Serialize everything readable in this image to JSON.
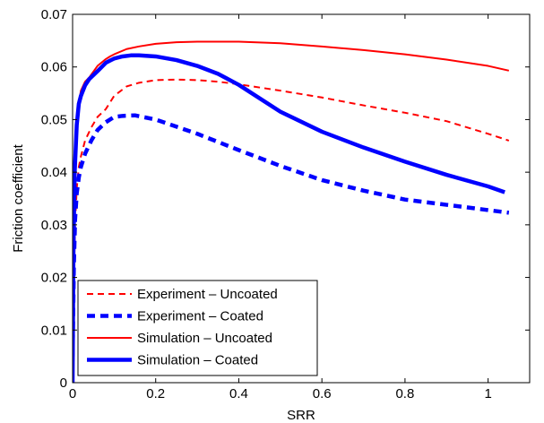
{
  "chart_data": {
    "type": "line",
    "title": "",
    "xlabel": "SRR",
    "ylabel": "Friction coefficient",
    "xlim": [
      0,
      1.1
    ],
    "ylim": [
      0,
      0.07
    ],
    "xticks": [
      0,
      0.2,
      0.4,
      0.6,
      0.8,
      1
    ],
    "xtick_labels": [
      "0",
      "0.2",
      "0.4",
      "0.6",
      "0.8",
      "1"
    ],
    "yticks": [
      0,
      0.01,
      0.02,
      0.03,
      0.04,
      0.05,
      0.06,
      0.07
    ],
    "ytick_labels": [
      "0",
      "0.01",
      "0.02",
      "0.03",
      "0.04",
      "0.05",
      "0.06",
      "0.07"
    ],
    "grid": false,
    "legend_position": "bottom-left",
    "series": [
      {
        "name": "Experiment – Uncoated",
        "color": "#ff0000",
        "style": "dashed",
        "width": "thin",
        "x": [
          0.0,
          0.003,
          0.006,
          0.01,
          0.015,
          0.02,
          0.03,
          0.045,
          0.06,
          0.08,
          0.1,
          0.13,
          0.16,
          0.2,
          0.25,
          0.3,
          0.35,
          0.4,
          0.5,
          0.6,
          0.7,
          0.8,
          0.9,
          1.0,
          1.05
        ],
        "y": [
          0.002,
          0.02,
          0.03,
          0.037,
          0.041,
          0.043,
          0.046,
          0.0485,
          0.0505,
          0.052,
          0.0545,
          0.0563,
          0.057,
          0.0575,
          0.0576,
          0.0575,
          0.0572,
          0.0567,
          0.0555,
          0.0542,
          0.0527,
          0.0513,
          0.0497,
          0.0473,
          0.046
        ]
      },
      {
        "name": "Experiment – Coated",
        "color": "#0000ff",
        "style": "dashed",
        "width": "thick",
        "x": [
          0.0,
          0.003,
          0.006,
          0.01,
          0.015,
          0.02,
          0.03,
          0.045,
          0.06,
          0.08,
          0.1,
          0.12,
          0.15,
          0.2,
          0.3,
          0.4,
          0.5,
          0.6,
          0.7,
          0.8,
          0.9,
          1.0,
          1.05
        ],
        "y": [
          0.005,
          0.022,
          0.031,
          0.036,
          0.039,
          0.041,
          0.0435,
          0.046,
          0.048,
          0.0495,
          0.0505,
          0.0507,
          0.0508,
          0.05,
          0.0473,
          0.0442,
          0.0412,
          0.0385,
          0.0365,
          0.0348,
          0.0338,
          0.0328,
          0.0323
        ]
      },
      {
        "name": "Simulation – Uncoated",
        "color": "#ff0000",
        "style": "solid",
        "width": "thin",
        "x": [
          0.0,
          0.002,
          0.005,
          0.01,
          0.015,
          0.02,
          0.03,
          0.04,
          0.06,
          0.08,
          0.09,
          0.1,
          0.13,
          0.16,
          0.2,
          0.25,
          0.3,
          0.35,
          0.4,
          0.5,
          0.6,
          0.7,
          0.8,
          0.9,
          1.0,
          1.05
        ],
        "y": [
          0.0,
          0.025,
          0.04,
          0.049,
          0.053,
          0.0555,
          0.0572,
          0.058,
          0.0602,
          0.0615,
          0.062,
          0.0624,
          0.0634,
          0.0639,
          0.0644,
          0.0647,
          0.0648,
          0.0648,
          0.0648,
          0.0645,
          0.0639,
          0.0632,
          0.0624,
          0.0614,
          0.0602,
          0.0593
        ]
      },
      {
        "name": "Simulation – Coated",
        "color": "#0000ff",
        "style": "solid",
        "width": "thick",
        "x": [
          0.0,
          0.002,
          0.005,
          0.01,
          0.015,
          0.02,
          0.03,
          0.04,
          0.06,
          0.08,
          0.09,
          0.1,
          0.12,
          0.14,
          0.16,
          0.2,
          0.25,
          0.3,
          0.35,
          0.4,
          0.5,
          0.6,
          0.7,
          0.8,
          0.9,
          1.0,
          1.04
        ],
        "y": [
          0.0,
          0.025,
          0.04,
          0.049,
          0.053,
          0.0545,
          0.0565,
          0.0577,
          0.0592,
          0.0608,
          0.0612,
          0.0616,
          0.062,
          0.0622,
          0.0622,
          0.062,
          0.0613,
          0.0602,
          0.0587,
          0.0566,
          0.0515,
          0.0477,
          0.0447,
          0.042,
          0.0395,
          0.0373,
          0.0362
        ]
      }
    ]
  }
}
